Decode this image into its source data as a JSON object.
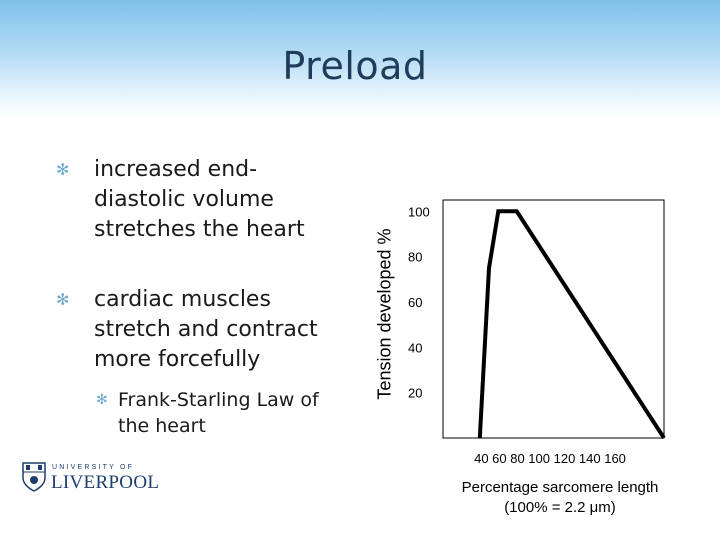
{
  "slide": {
    "title": "Preload",
    "bullets": [
      {
        "text": "increased end-\ndiastolic volume\nstretches the heart",
        "marker": "asterisk-icon"
      },
      {
        "text": "cardiac muscles\nstretch and contract\nmore forcefully",
        "marker": "asterisk-icon"
      }
    ],
    "sub_bullet": {
      "text": "Frank-Starling Law of\nthe heart",
      "marker": "asterisk-icon"
    },
    "logo": {
      "line1": "UNIVERSITY OF",
      "line2": "LIVERPOOL"
    }
  },
  "chart_data": {
    "type": "line",
    "title": "",
    "ylabel": "Tension developed %",
    "xlabel_line1": "Percentage sarcomere length",
    "xlabel_line2": "(100% = 2.2 μm)",
    "x_tick_labels": "40  60  80  100  120  140  160",
    "y_ticks": [
      "100",
      "80",
      "60",
      "40",
      "20"
    ],
    "y_tick_values": [
      100,
      80,
      60,
      40,
      20
    ],
    "xlim": [
      40,
      160
    ],
    "ylim": [
      0,
      105
    ],
    "grid": false,
    "series": [
      {
        "x": [
          60,
          65,
          70,
          80,
          160
        ],
        "y": [
          0,
          75,
          100,
          100,
          0
        ],
        "color": "#000000"
      }
    ]
  }
}
